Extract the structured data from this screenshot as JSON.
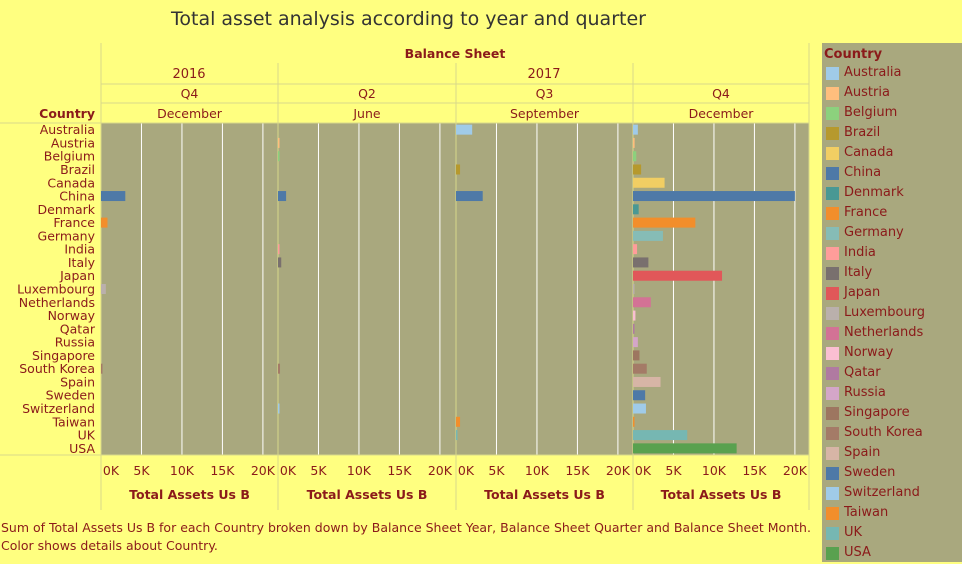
{
  "title": "Total asset analysis according to year and quarter",
  "chart_data": {
    "type": "bar",
    "orientation": "horizontal",
    "title": "Total asset analysis according to year and quarter",
    "column_group_label": "Balance Sheet",
    "row_header": "Country",
    "xlabel": "Total Assets Us B",
    "xlim": [
      0,
      21000
    ],
    "x_ticks": [
      "0K",
      "5K",
      "10K",
      "15K",
      "20K"
    ],
    "categories": [
      "Australia",
      "Austria",
      "Belgium",
      "Brazil",
      "Canada",
      "China",
      "Denmark",
      "France",
      "Germany",
      "India",
      "Italy",
      "Japan",
      "Luxembourg",
      "Netherlands",
      "Norway",
      "Qatar",
      "Russia",
      "Singapore",
      "South Korea",
      "Spain",
      "Sweden",
      "Switzerland",
      "Taiwan",
      "UK",
      "USA"
    ],
    "colors": {
      "Australia": "#a0cbe8",
      "Austria": "#ffbe7d",
      "Belgium": "#8cd17d",
      "Brazil": "#b6992d",
      "Canada": "#f1ce63",
      "China": "#4e79a7",
      "Denmark": "#499894",
      "France": "#f28e2b",
      "Germany": "#86bcb6",
      "India": "#ff9d9a",
      "Italy": "#79706e",
      "Japan": "#e15759",
      "Luxembourg": "#bab0ac",
      "Netherlands": "#d37295",
      "Norway": "#fabfd2",
      "Qatar": "#b07aa1",
      "Russia": "#d4a6c8",
      "Singapore": "#9d7660",
      "South Korea": "#a47b67",
      "Spain": "#d7b5a6",
      "Sweden": "#4e79a7",
      "Switzerland": "#a0cbe8",
      "Taiwan": "#f28e2b",
      "UK": "#76b7b2",
      "USA": "#59a14f"
    },
    "panels": [
      {
        "year": "2016",
        "quarter": "Q4",
        "month": "December",
        "values": {
          "China": 3000,
          "France": 800,
          "Luxembourg": 600,
          "South Korea": 150
        }
      },
      {
        "year": "2017",
        "quarter": "Q2",
        "month": "June",
        "values": {
          "China": 1000,
          "Italy": 400,
          "South Korea": 250,
          "Switzerland": 150,
          "Austria": 80,
          "Belgium": 80,
          "India": 80
        }
      },
      {
        "year": "2017",
        "quarter": "Q3",
        "month": "September",
        "values": {
          "Australia": 2000,
          "China": 3300,
          "Brazil": 500,
          "Taiwan": 500,
          "UK": 150
        }
      },
      {
        "year": "2017",
        "quarter": "Q4",
        "month": "December",
        "values": {
          "Australia": 600,
          "Austria": 200,
          "Belgium": 400,
          "Brazil": 1000,
          "Canada": 3900,
          "China": 20000,
          "Denmark": 700,
          "France": 7700,
          "Germany": 3700,
          "India": 500,
          "Italy": 1900,
          "Japan": 11000,
          "Luxembourg": 100,
          "Netherlands": 2200,
          "Norway": 300,
          "Qatar": 100,
          "Russia": 600,
          "Singapore": 800,
          "South Korea": 1700,
          "Spain": 3400,
          "Sweden": 1500,
          "Switzerland": 1600,
          "Taiwan": 100,
          "UK": 6700,
          "USA": 12800
        }
      }
    ]
  },
  "legend": {
    "title": "Country",
    "items": [
      "Australia",
      "Austria",
      "Belgium",
      "Brazil",
      "Canada",
      "China",
      "Denmark",
      "France",
      "Germany",
      "India",
      "Italy",
      "Japan",
      "Luxembourg",
      "Netherlands",
      "Norway",
      "Qatar",
      "Russia",
      "Singapore",
      "South Korea",
      "Spain",
      "Sweden",
      "Switzerland",
      "Taiwan",
      "UK",
      "USA"
    ]
  },
  "footer": {
    "line1": "Sum of Total Assets Us B for each Country broken down by Balance Sheet Year, Balance Sheet Quarter and Balance Sheet Month.",
    "line2": "Color shows details about Country."
  }
}
